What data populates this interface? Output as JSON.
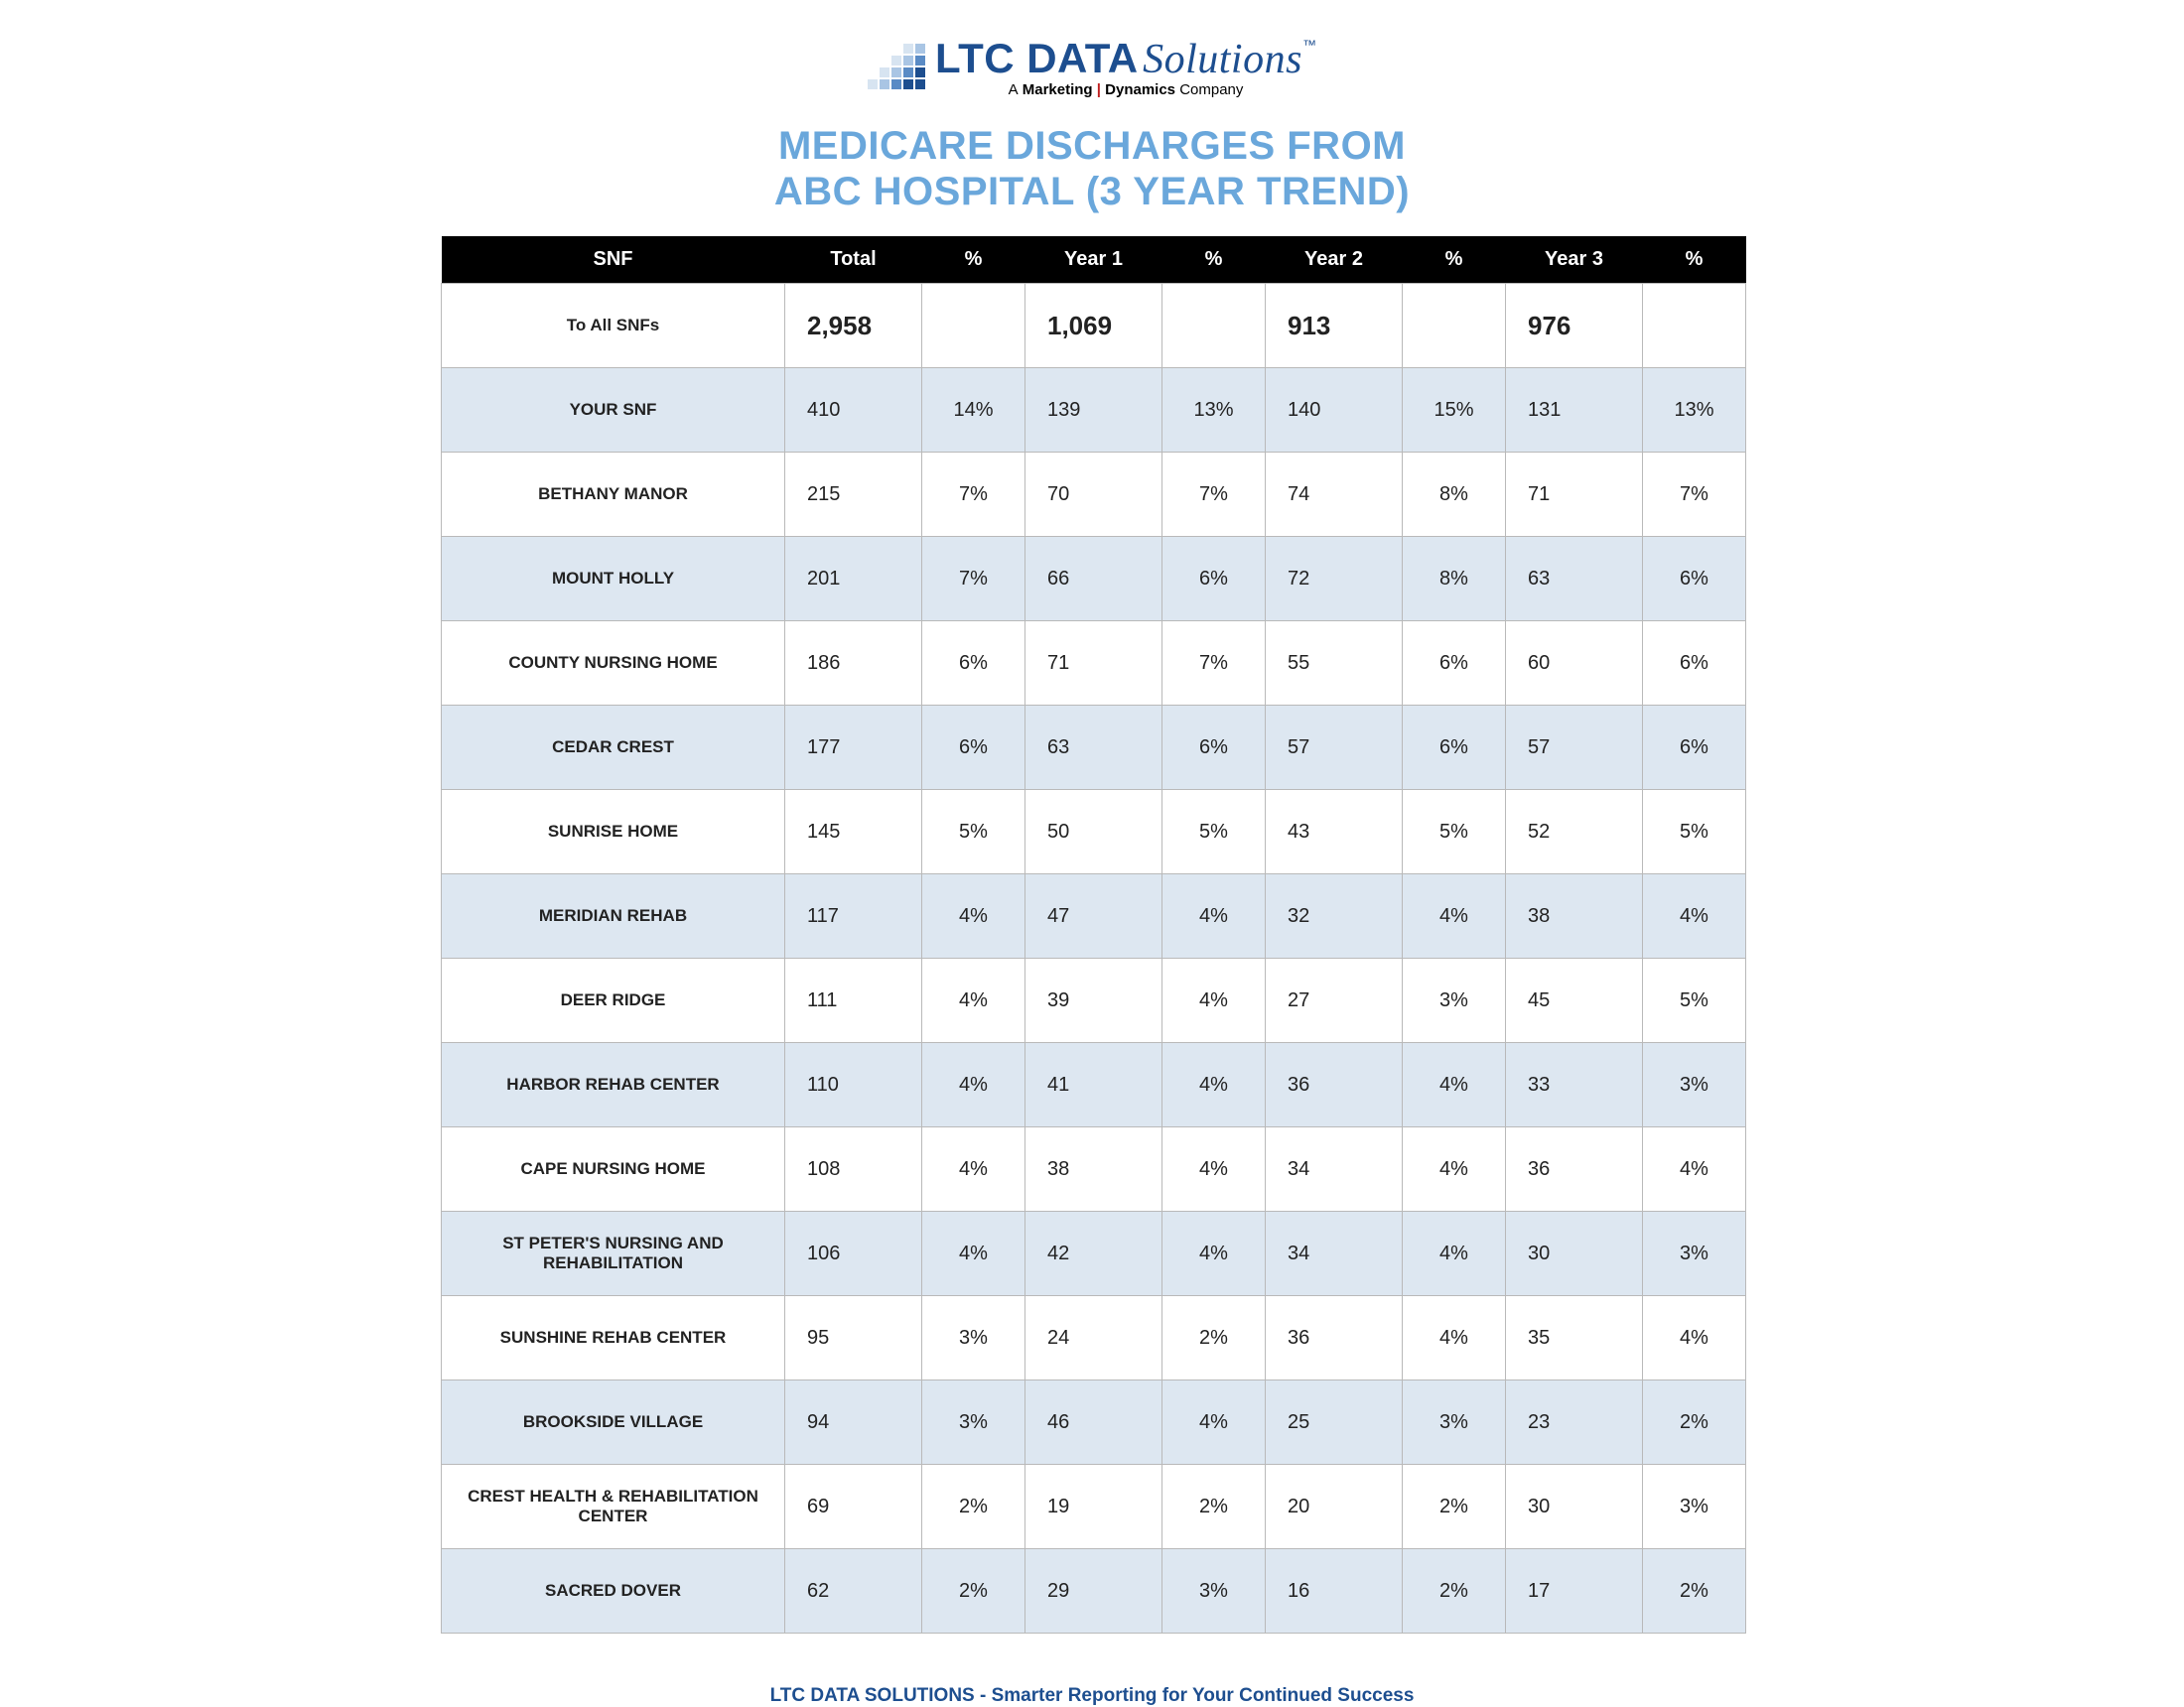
{
  "logo": {
    "main_bold": "LTC DATA",
    "main_italic": "Solutions",
    "tm": "™",
    "sub_a": "A",
    "sub_marketing": "Marketing",
    "sub_bar": "|",
    "sub_dynamics": "Dynamics",
    "sub_company": "Company"
  },
  "title_line1": "MEDICARE DISCHARGES FROM",
  "title_line2": "ABC HOSPITAL (3 YEAR TREND)",
  "headers": {
    "snf": "SNF",
    "total": "Total",
    "pct": "%",
    "year1": "Year 1",
    "year2": "Year 2",
    "year3": "Year 3"
  },
  "rows": [
    {
      "name": "To All SNFs",
      "total": "2,958",
      "tpct": "",
      "y1": "1,069",
      "p1": "",
      "y2": "913",
      "p2": "",
      "y3": "976",
      "p3": "",
      "is_total": true,
      "alt": false
    },
    {
      "name": "YOUR SNF",
      "total": "410",
      "tpct": "14%",
      "y1": "139",
      "p1": "13%",
      "y2": "140",
      "p2": "15%",
      "y3": "131",
      "p3": "13%",
      "alt": true
    },
    {
      "name": "BETHANY MANOR",
      "total": "215",
      "tpct": "7%",
      "y1": "70",
      "p1": "7%",
      "y2": "74",
      "p2": "8%",
      "y3": "71",
      "p3": "7%",
      "alt": false
    },
    {
      "name": "MOUNT HOLLY",
      "total": "201",
      "tpct": "7%",
      "y1": "66",
      "p1": "6%",
      "y2": "72",
      "p2": "8%",
      "y3": "63",
      "p3": "6%",
      "alt": true
    },
    {
      "name": "COUNTY NURSING HOME",
      "total": "186",
      "tpct": "6%",
      "y1": "71",
      "p1": "7%",
      "y2": "55",
      "p2": "6%",
      "y3": "60",
      "p3": "6%",
      "alt": false
    },
    {
      "name": "CEDAR CREST",
      "total": "177",
      "tpct": "6%",
      "y1": "63",
      "p1": "6%",
      "y2": "57",
      "p2": "6%",
      "y3": "57",
      "p3": "6%",
      "alt": true
    },
    {
      "name": "SUNRISE HOME",
      "total": "145",
      "tpct": "5%",
      "y1": "50",
      "p1": "5%",
      "y2": "43",
      "p2": "5%",
      "y3": "52",
      "p3": "5%",
      "alt": false
    },
    {
      "name": "MERIDIAN REHAB",
      "total": "117",
      "tpct": "4%",
      "y1": "47",
      "p1": "4%",
      "y2": "32",
      "p2": "4%",
      "y3": "38",
      "p3": "4%",
      "alt": true
    },
    {
      "name": "DEER RIDGE",
      "total": "111",
      "tpct": "4%",
      "y1": "39",
      "p1": "4%",
      "y2": "27",
      "p2": "3%",
      "y3": "45",
      "p3": "5%",
      "alt": false
    },
    {
      "name": "HARBOR REHAB CENTER",
      "total": "110",
      "tpct": "4%",
      "y1": "41",
      "p1": "4%",
      "y2": "36",
      "p2": "4%",
      "y3": "33",
      "p3": "3%",
      "alt": true
    },
    {
      "name": "CAPE NURSING HOME",
      "total": "108",
      "tpct": "4%",
      "y1": "38",
      "p1": "4%",
      "y2": "34",
      "p2": "4%",
      "y3": "36",
      "p3": "4%",
      "alt": false
    },
    {
      "name": "ST PETER'S NURSING AND REHABILITATION",
      "total": "106",
      "tpct": "4%",
      "y1": "42",
      "p1": "4%",
      "y2": "34",
      "p2": "4%",
      "y3": "30",
      "p3": "3%",
      "alt": true
    },
    {
      "name": "SUNSHINE REHAB CENTER",
      "total": "95",
      "tpct": "3%",
      "y1": "24",
      "p1": "2%",
      "y2": "36",
      "p2": "4%",
      "y3": "35",
      "p3": "4%",
      "alt": false
    },
    {
      "name": "BROOKSIDE VILLAGE",
      "total": "94",
      "tpct": "3%",
      "y1": "46",
      "p1": "4%",
      "y2": "25",
      "p2": "3%",
      "y3": "23",
      "p3": "2%",
      "alt": true
    },
    {
      "name": "CREST HEALTH & REHABILITATION CENTER",
      "total": "69",
      "tpct": "2%",
      "y1": "19",
      "p1": "2%",
      "y2": "20",
      "p2": "2%",
      "y3": "30",
      "p3": "3%",
      "alt": false
    },
    {
      "name": "SACRED DOVER",
      "total": "62",
      "tpct": "2%",
      "y1": "29",
      "p1": "3%",
      "y2": "16",
      "p2": "2%",
      "y3": "17",
      "p3": "2%",
      "alt": true
    }
  ],
  "footer": "LTC DATA SOLUTIONS - Smarter Reporting for Your Continued Success",
  "style": {
    "header_bg": "#000000",
    "header_fg": "#ffffff",
    "alt_row_bg": "#dde7f1",
    "border_color": "#b9b9b9",
    "title_color": "#6aa7db",
    "brand_color": "#1d4e8f"
  }
}
